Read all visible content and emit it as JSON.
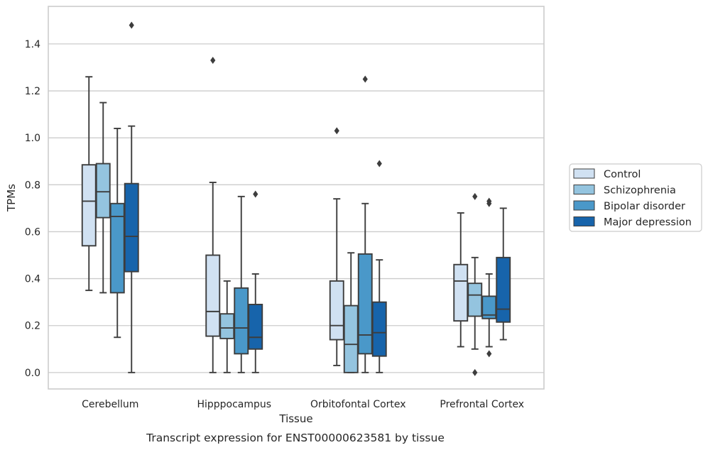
{
  "chart_data": {
    "type": "box",
    "caption": "Transcript expression for ENST00000623581 by tissue",
    "xlabel": "Tissue",
    "ylabel": "TPMs",
    "ylim": [
      -0.07,
      1.56
    ],
    "yticks": [
      0.0,
      0.2,
      0.4,
      0.6,
      0.8,
      1.0,
      1.2,
      1.4
    ],
    "grid": true,
    "legend_position": "right",
    "categories": [
      "Cerebellum",
      "Hipppocampus",
      "Orbitofontal Cortex",
      "Prefrontal Cortex"
    ],
    "series": [
      {
        "name": "Control",
        "color": "#d0e1f2",
        "boxes": [
          {
            "whislo": 0.35,
            "q1": 0.54,
            "med": 0.73,
            "q3": 0.885,
            "whishi": 1.26,
            "fliers": []
          },
          {
            "whislo": 0.0,
            "q1": 0.155,
            "med": 0.26,
            "q3": 0.5,
            "whishi": 0.81,
            "fliers": [
              1.33
            ]
          },
          {
            "whislo": 0.03,
            "q1": 0.14,
            "med": 0.2,
            "q3": 0.39,
            "whishi": 0.74,
            "fliers": [
              1.03
            ]
          },
          {
            "whislo": 0.11,
            "q1": 0.22,
            "med": 0.39,
            "q3": 0.46,
            "whishi": 0.68,
            "fliers": []
          }
        ]
      },
      {
        "name": "Schizophrenia",
        "color": "#94c4df",
        "boxes": [
          {
            "whislo": 0.34,
            "q1": 0.66,
            "med": 0.77,
            "q3": 0.89,
            "whishi": 1.15,
            "fliers": []
          },
          {
            "whislo": 0.0,
            "q1": 0.145,
            "med": 0.19,
            "q3": 0.25,
            "whishi": 0.39,
            "fliers": []
          },
          {
            "whislo": 0.0,
            "q1": 0.0,
            "med": 0.12,
            "q3": 0.285,
            "whishi": 0.51,
            "fliers": []
          },
          {
            "whislo": 0.1,
            "q1": 0.24,
            "med": 0.33,
            "q3": 0.38,
            "whishi": 0.49,
            "fliers": [
              0.75,
              0.0
            ]
          }
        ]
      },
      {
        "name": "Bipolar disorder",
        "color": "#4a98c9",
        "boxes": [
          {
            "whislo": 0.15,
            "q1": 0.34,
            "med": 0.665,
            "q3": 0.72,
            "whishi": 1.04,
            "fliers": []
          },
          {
            "whislo": 0.0,
            "q1": 0.08,
            "med": 0.19,
            "q3": 0.36,
            "whishi": 0.75,
            "fliers": []
          },
          {
            "whislo": 0.0,
            "q1": 0.08,
            "med": 0.16,
            "q3": 0.505,
            "whishi": 0.72,
            "fliers": [
              1.25
            ]
          },
          {
            "whislo": 0.11,
            "q1": 0.23,
            "med": 0.245,
            "q3": 0.325,
            "whishi": 0.42,
            "fliers": [
              0.73,
              0.72,
              0.08
            ]
          }
        ]
      },
      {
        "name": "Major depression",
        "color": "#1764ab",
        "boxes": [
          {
            "whislo": 0.0,
            "q1": 0.43,
            "med": 0.58,
            "q3": 0.805,
            "whishi": 1.05,
            "fliers": [
              1.48
            ]
          },
          {
            "whislo": 0.0,
            "q1": 0.1,
            "med": 0.15,
            "q3": 0.29,
            "whishi": 0.42,
            "fliers": [
              0.76
            ]
          },
          {
            "whislo": 0.0,
            "q1": 0.07,
            "med": 0.17,
            "q3": 0.3,
            "whishi": 0.48,
            "fliers": [
              0.89
            ]
          },
          {
            "whislo": 0.14,
            "q1": 0.215,
            "med": 0.27,
            "q3": 0.49,
            "whishi": 0.7,
            "fliers": []
          }
        ]
      }
    ]
  },
  "colors": {
    "edge": "#3d3d3d",
    "grid": "#cccccc",
    "frame": "#cccccc",
    "background": "#ffffff"
  }
}
